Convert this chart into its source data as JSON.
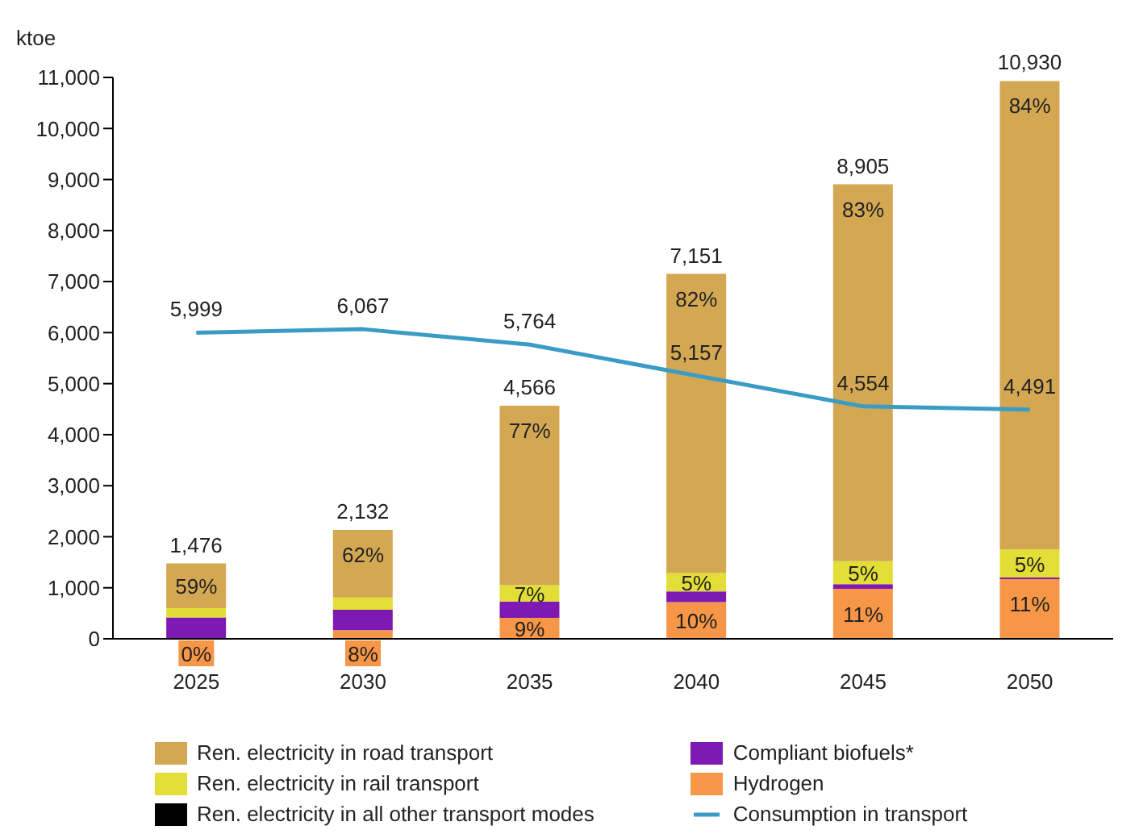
{
  "chart_data": {
    "type": "bar",
    "stacked": true,
    "ylabel": "ktoe",
    "categories": [
      "2025",
      "2030",
      "2035",
      "2040",
      "2045",
      "2050"
    ],
    "ylim": [
      0,
      11000
    ],
    "yticks": [
      0,
      {
        "value": 1000,
        "label": "1,000"
      },
      {
        "value": 2000,
        "label": "2,000"
      },
      {
        "value": 3000,
        "label": "3,000"
      },
      {
        "value": 4000,
        "label": "4,000"
      },
      {
        "value": 5000,
        "label": "5,000"
      },
      {
        "value": 6000,
        "label": "6,000"
      },
      {
        "value": 7000,
        "label": "7,000"
      },
      {
        "value": 8000,
        "label": "8,000"
      },
      {
        "value": 9000,
        "label": "9,000"
      },
      {
        "value": 10000,
        "label": "10,000"
      },
      {
        "value": 11000,
        "label": "11,000"
      }
    ],
    "legend": "bottom",
    "series": [
      {
        "name": "Hydrogen",
        "color": "#f79646",
        "values": [
          0,
          170,
          410,
          720,
          980,
          1170
        ]
      },
      {
        "name": "Compliant biofuels*",
        "color": "#7e19b4",
        "values": [
          420,
          400,
          320,
          210,
          90,
          30
        ]
      },
      {
        "name": "Ren. electricity in all other transport modes",
        "color": "#000000",
        "values": [
          0,
          0,
          0,
          0,
          0,
          0
        ]
      },
      {
        "name": "Ren. electricity in rail transport",
        "color": "#e3de35",
        "values": [
          180,
          240,
          320,
          360,
          450,
          550
        ]
      },
      {
        "name": "Ren. electricity in road transport",
        "color": "#d4a853",
        "values": [
          876,
          1322,
          3516,
          5861,
          7385,
          9180
        ]
      },
      {
        "name": "Consumption in transport",
        "type": "line",
        "color": "#3a9cc4",
        "values": [
          5999,
          6067,
          5764,
          5157,
          4554,
          4491
        ],
        "value_labels": [
          "5,999",
          "6,067",
          "5,764",
          "5,157",
          "4,554",
          "4,491"
        ]
      }
    ],
    "totals": [
      "1,476",
      "2,132",
      "4,566",
      "7,151",
      "8,905",
      "10,930"
    ],
    "annotations": [
      {
        "text": "0%",
        "x": "2025",
        "y": 0
      },
      {
        "text": "59%",
        "x": "2025",
        "y": 1476
      },
      {
        "text": "8%",
        "x": "2030",
        "y": 170
      },
      {
        "text": "62%",
        "x": "2030",
        "y": 2132
      },
      {
        "text": "9%",
        "x": "2035",
        "y": 410
      },
      {
        "text": "7%",
        "x": "2035",
        "y": 1050
      },
      {
        "text": "77%",
        "x": "2035",
        "y": 4566
      },
      {
        "text": "10%",
        "x": "2040",
        "y": 720
      },
      {
        "text": "5%",
        "x": "2040",
        "y": 1290
      },
      {
        "text": "82%",
        "x": "2040",
        "y": 7151
      },
      {
        "text": "11%",
        "x": "2045",
        "y": 980
      },
      {
        "text": "5%",
        "x": "2045",
        "y": 1520
      },
      {
        "text": "83%",
        "x": "2045",
        "y": 8905
      },
      {
        "text": "11%",
        "x": "2050",
        "y": 1170
      },
      {
        "text": "5%",
        "x": "2050",
        "y": 1750
      },
      {
        "text": "84%",
        "x": "2050",
        "y": 10930
      }
    ]
  }
}
